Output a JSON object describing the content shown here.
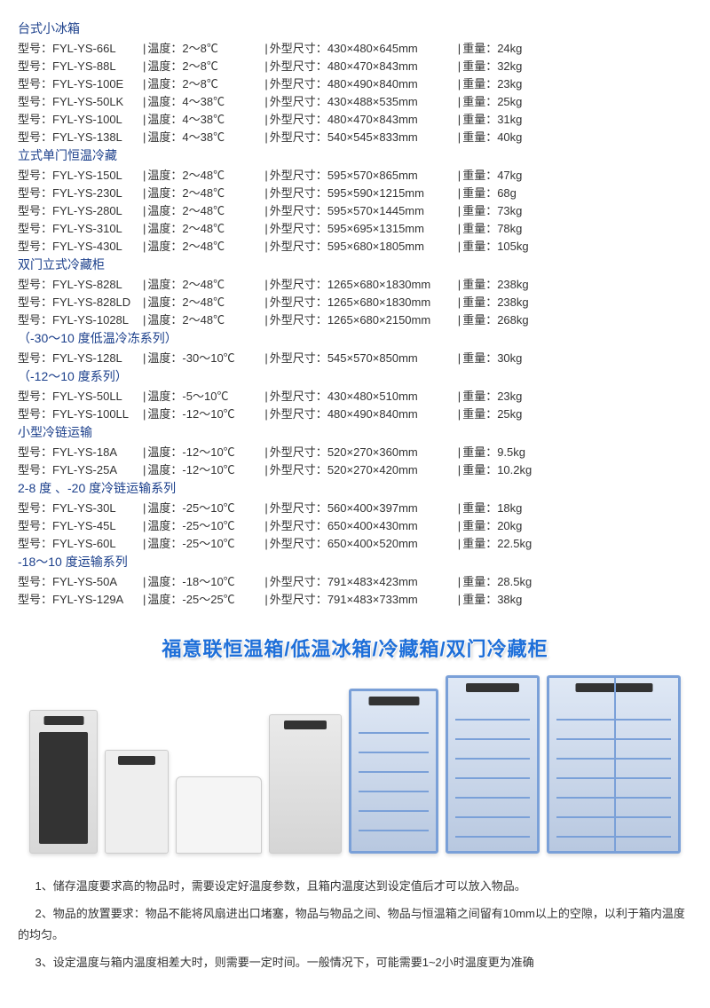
{
  "labels": {
    "model": "型号：",
    "temp": "温度：",
    "size": "外型尺寸：",
    "weight": "重量：",
    "sep": "|"
  },
  "sections": [
    {
      "header": "台式小冰箱",
      "rows": [
        {
          "model": "FYL-YS-66L",
          "temp": "2～8℃",
          "size": "430×480×645mm",
          "weight": "24kg"
        },
        {
          "model": "FYL-YS-88L",
          "temp": "2～8℃",
          "size": "480×470×843mm",
          "weight": "32kg"
        },
        {
          "model": "FYL-YS-100E",
          "temp": "2～8℃",
          "size": "480×490×840mm",
          "weight": "23kg"
        },
        {
          "model": "FYL-YS-50LK",
          "temp": "4～38℃",
          "size": "430×488×535mm",
          "weight": "25kg"
        },
        {
          "model": "FYL-YS-100L",
          "temp": "4～38℃",
          "size": "480×470×843mm",
          "weight": "31kg"
        },
        {
          "model": "FYL-YS-138L",
          "temp": "4～38℃",
          "size": "540×545×833mm",
          "weight": "40kg"
        }
      ]
    },
    {
      "header": "立式单门恒温冷藏",
      "rows": [
        {
          "model": "FYL-YS-150L",
          "temp": "2～48℃",
          "size": "595×570×865mm",
          "weight": "47kg"
        },
        {
          "model": "FYL-YS-230L",
          "temp": "2～48℃",
          "size": "595×590×1215mm",
          "weight": "68g"
        },
        {
          "model": "FYL-YS-280L",
          "temp": "2～48℃",
          "size": "595×570×1445mm",
          "weight": "73kg"
        },
        {
          "model": "FYL-YS-310L",
          "temp": "2～48℃",
          "size": "595×695×1315mm",
          "weight": "78kg"
        },
        {
          "model": "FYL-YS-430L",
          "temp": "2～48℃",
          "size": "595×680×1805mm",
          "weight": "105kg"
        }
      ]
    },
    {
      "header": "双门立式冷藏柜",
      "rows": [
        {
          "model": "FYL-YS-828L",
          "temp": "2～48℃",
          "size": "1265×680×1830mm",
          "weight": "238kg"
        },
        {
          "model": "FYL-YS-828LD",
          "temp": "2～48℃",
          "size": "1265×680×1830mm",
          "weight": "238kg"
        },
        {
          "model": "FYL-YS-1028L",
          "temp": "2～48℃",
          "size": "1265×680×2150mm",
          "weight": "268kg"
        }
      ]
    },
    {
      "header": "（-30～10 度低温冷冻系列）",
      "rows": [
        {
          "model": "FYL-YS-128L",
          "temp": "-30～10℃",
          "size": "545×570×850mm",
          "weight": "30kg"
        }
      ]
    },
    {
      "header": "（-12～10 度系列）",
      "rows": [
        {
          "model": "FYL-YS-50LL",
          "temp": "-5～10℃",
          "size": "430×480×510mm",
          "weight": "23kg"
        },
        {
          "model": "FYL-YS-100LL",
          "temp": "-12～10℃",
          "size": "480×490×840mm",
          "weight": "25kg"
        }
      ]
    },
    {
      "header": "小型冷链运输",
      "rows": [
        {
          "model": "FYL-YS-18A",
          "temp": "-12～10℃",
          "size": "520×270×360mm",
          "weight": "9.5kg"
        },
        {
          "model": "FYL-YS-25A",
          "temp": "-12～10℃",
          "size": "520×270×420mm",
          "weight": "10.2kg"
        }
      ]
    },
    {
      "header": "2-8 度 、-20 度冷链运输系列",
      "rows": [
        {
          "model": "FYL-YS-30L",
          "temp": "-25～10℃",
          "size": "560×400×397mm",
          "weight": "18kg"
        },
        {
          "model": "FYL-YS-45L",
          "temp": "-25～10℃",
          "size": "650×400×430mm",
          "weight": "20kg"
        },
        {
          "model": "FYL-YS-60L",
          "temp": "-25～10℃",
          "size": "650×400×520mm",
          "weight": "22.5kg"
        }
      ]
    },
    {
      "header": "-18～10 度运输系列",
      "rows": [
        {
          "model": "FYL-YS-50A",
          "temp": "-18～10℃",
          "size": "791×483×423mm",
          "weight": "28.5kg"
        },
        {
          "model": "FYL-YS-129A",
          "temp": "-25～25℃",
          "size": "791×483×733mm",
          "weight": "38kg"
        }
      ]
    }
  ],
  "banner": "福意联恒温箱/低温冰箱/冷藏箱/双门冷藏柜",
  "notes": [
    "1、储存温度要求高的物品时，需要设定好温度参数，且箱内温度达到设定值后才可以放入物品。",
    "2、物品的放置要求：物品不能将风扇进出口堵塞，物品与物品之间、物品与恒温箱之间留有10mm以上的空隙，以利于箱内温度的均匀。",
    "3、设定温度与箱内温度相差大时，则需要一定时间。一般情况下，可能需要1~2小时温度更为准确"
  ]
}
